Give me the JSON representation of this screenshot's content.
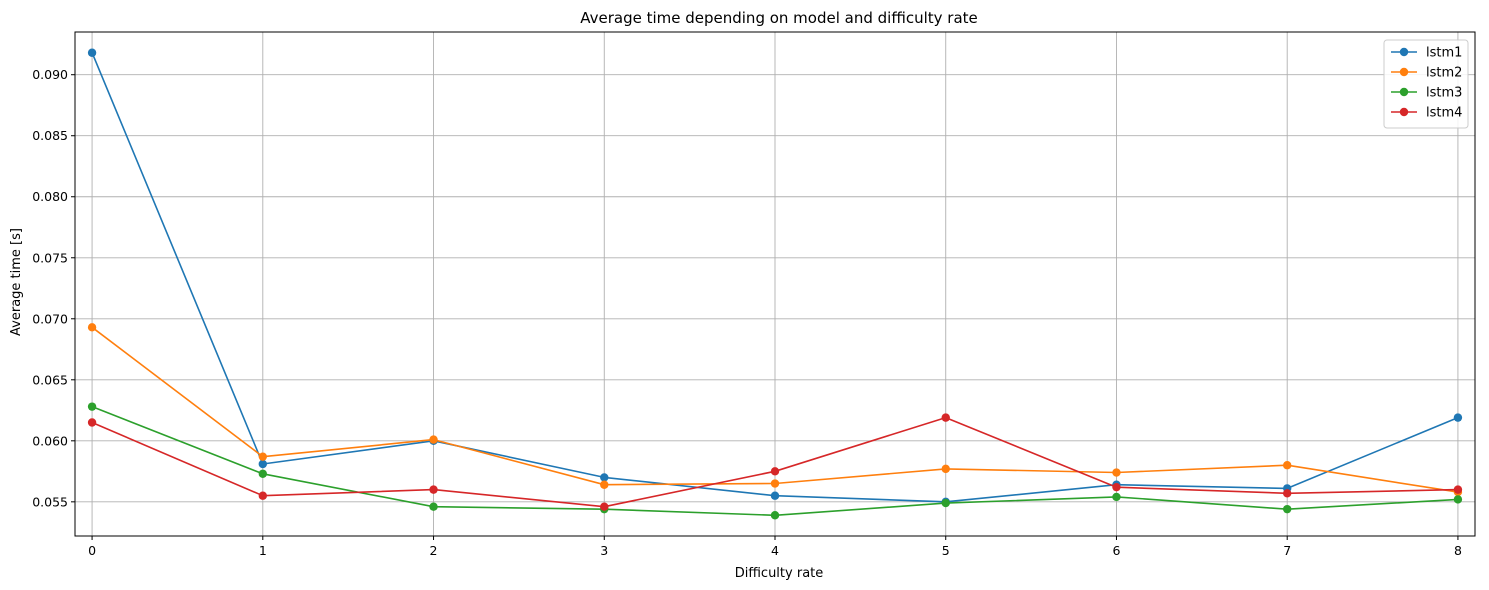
{
  "chart_data": {
    "type": "line",
    "title": "Average time depending on model and difficulty rate",
    "xlabel": "Difficulty rate",
    "ylabel": "Average time [s]",
    "x": [
      0,
      1,
      2,
      3,
      4,
      5,
      6,
      7,
      8
    ],
    "xlim": [
      -0.1,
      8.1
    ],
    "ylim": [
      0.0522,
      0.0935
    ],
    "xticks": [
      0,
      1,
      2,
      3,
      4,
      5,
      6,
      7,
      8
    ],
    "yticks": [
      0.055,
      0.06,
      0.065,
      0.07,
      0.075,
      0.08,
      0.085,
      0.09
    ],
    "ytick_labels": [
      "0.055",
      "0.060",
      "0.065",
      "0.070",
      "0.075",
      "0.080",
      "0.085",
      "0.090"
    ],
    "grid": true,
    "legend_position": "top-right",
    "series": [
      {
        "name": "lstm1",
        "color": "#1f77b4",
        "values": [
          0.0918,
          0.0581,
          0.06,
          0.057,
          0.0555,
          0.055,
          0.0564,
          0.0561,
          0.0619
        ]
      },
      {
        "name": "lstm2",
        "color": "#ff7f0e",
        "values": [
          0.0693,
          0.0587,
          0.0601,
          0.0564,
          0.0565,
          0.0577,
          0.0574,
          0.058,
          0.0558
        ]
      },
      {
        "name": "lstm3",
        "color": "#2ca02c",
        "values": [
          0.0628,
          0.0573,
          0.0546,
          0.0544,
          0.0539,
          0.0549,
          0.0554,
          0.0544,
          0.0552
        ]
      },
      {
        "name": "lstm4",
        "color": "#d62728",
        "values": [
          0.0615,
          0.0555,
          0.056,
          0.0546,
          0.0575,
          0.0619,
          0.0562,
          0.0557,
          0.056
        ]
      }
    ]
  }
}
